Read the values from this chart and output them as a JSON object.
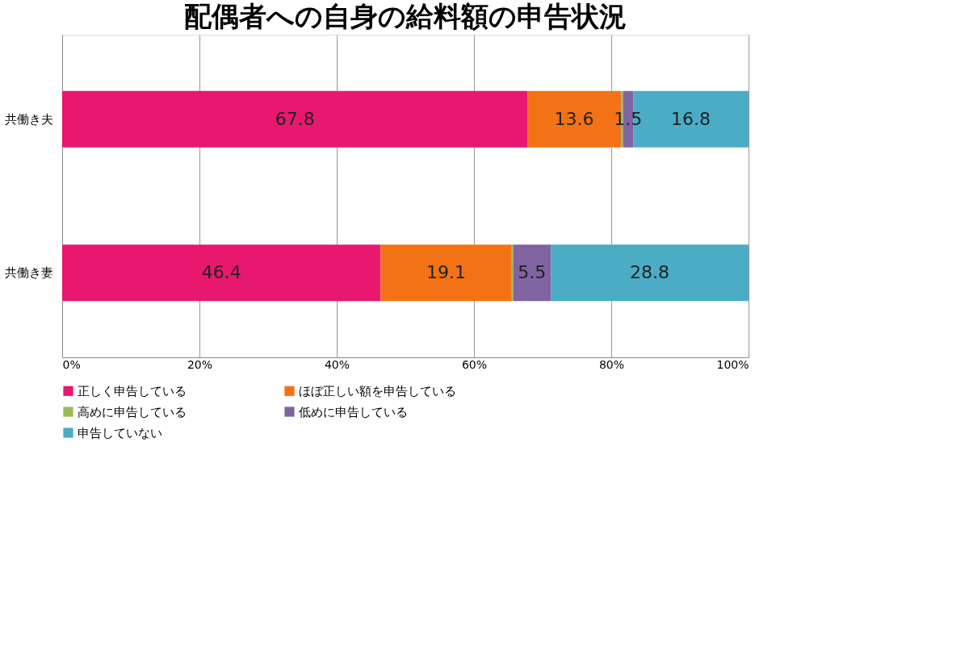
{
  "chart_data": {
    "type": "bar",
    "orientation": "horizontal",
    "stacked": true,
    "title": "配偶者への自身の給料額の申告状況",
    "categories": [
      "共働き夫",
      "共働き妻"
    ],
    "series": [
      {
        "name": "正しく申告している",
        "color": "#e8186e",
        "values": [
          67.8,
          46.4
        ],
        "value_labels": [
          "67.8",
          "46.4"
        ]
      },
      {
        "name": "ほぼ正しい額を申告している",
        "color": "#f47216",
        "values": [
          13.6,
          19.1
        ],
        "value_labels": [
          "13.6",
          "19.1"
        ]
      },
      {
        "name": "高めに申告している",
        "color": "#9bbb59",
        "values": [
          0.3,
          0.2
        ],
        "value_labels": [
          null,
          null
        ]
      },
      {
        "name": "低めに申告している",
        "color": "#8064a2",
        "values": [
          1.5,
          5.5
        ],
        "value_labels": [
          "1.5",
          "5.5"
        ]
      },
      {
        "name": "申告していない",
        "color": "#4bacc6",
        "values": [
          16.8,
          28.8
        ],
        "value_labels": [
          "16.8",
          "28.8"
        ]
      }
    ],
    "xlim": [
      0,
      100
    ],
    "xticks": [
      {
        "value": 0,
        "label": "0%"
      },
      {
        "value": 20,
        "label": "20%"
      },
      {
        "value": 40,
        "label": "40%"
      },
      {
        "value": 60,
        "label": "60%"
      },
      {
        "value": 80,
        "label": "80%"
      },
      {
        "value": 100,
        "label": "100%"
      }
    ],
    "grid": "x",
    "legend": "bottom"
  }
}
